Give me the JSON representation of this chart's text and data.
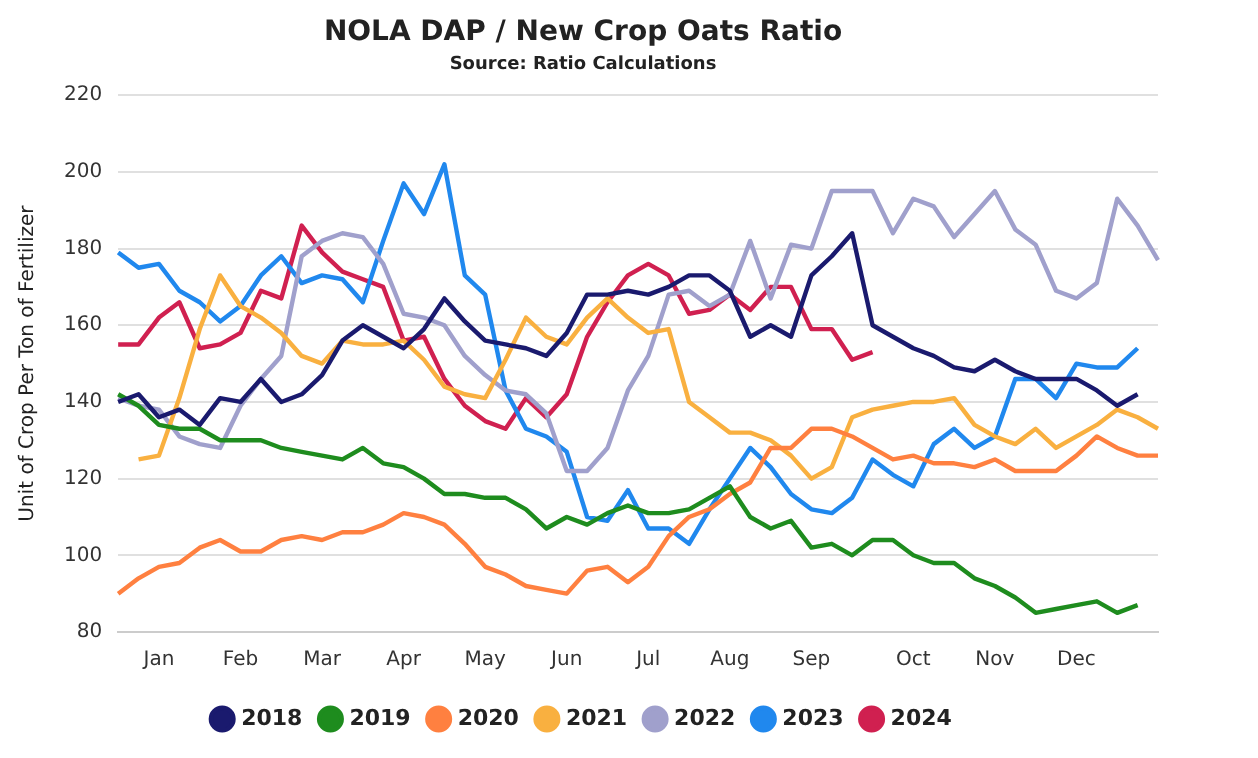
{
  "chart_data": {
    "type": "line",
    "title": "NOLA DAP / New Crop Oats Ratio",
    "subtitle": "Source: Ratio Calculations",
    "ylabel": "Unit of Crop Per Ton of Fertilizer",
    "categories": [
      null,
      null,
      "Jan",
      null,
      null,
      null,
      "Feb",
      null,
      null,
      null,
      "Mar",
      null,
      null,
      null,
      "Apr",
      null,
      null,
      null,
      "May",
      null,
      null,
      null,
      "Jun",
      null,
      null,
      null,
      "Jul",
      null,
      null,
      null,
      "Aug",
      null,
      null,
      null,
      "Sep",
      null,
      null,
      null,
      null,
      "Oct",
      null,
      null,
      null,
      "Nov",
      null,
      null,
      null,
      "Dec",
      null,
      null,
      null,
      null
    ],
    "series": [
      {
        "name": "2018",
        "color": "#1a1a6e",
        "values": [
          140,
          142,
          136,
          138,
          134,
          141,
          140,
          146,
          140,
          142,
          147,
          156,
          160,
          157,
          154,
          159,
          167,
          161,
          156,
          155,
          154,
          152,
          158,
          168,
          168,
          169,
          168,
          170,
          173,
          173,
          169,
          157,
          160,
          157,
          173,
          178,
          184,
          160,
          157,
          154,
          152,
          149,
          148,
          151,
          148,
          146,
          146,
          146,
          143,
          139,
          142,
          null
        ]
      },
      {
        "name": "2019",
        "color": "#1e8c1e",
        "values": [
          142,
          139,
          134,
          133,
          133,
          130,
          130,
          130,
          128,
          127,
          126,
          125,
          128,
          124,
          123,
          120,
          116,
          116,
          115,
          115,
          112,
          107,
          110,
          108,
          111,
          113,
          111,
          111,
          112,
          115,
          118,
          110,
          107,
          109,
          102,
          103,
          100,
          104,
          104,
          100,
          98,
          98,
          94,
          92,
          89,
          85,
          86,
          87,
          88,
          85,
          87,
          null
        ]
      },
      {
        "name": "2020",
        "color": "#ff8040",
        "values": [
          90,
          94,
          97,
          98,
          102,
          104,
          101,
          101,
          104,
          105,
          104,
          106,
          106,
          108,
          111,
          110,
          108,
          103,
          97,
          95,
          92,
          91,
          90,
          96,
          97,
          93,
          97,
          105,
          110,
          112,
          116,
          119,
          128,
          128,
          133,
          133,
          131,
          128,
          125,
          126,
          124,
          124,
          123,
          125,
          122,
          122,
          122,
          126,
          131,
          128,
          126,
          126
        ]
      },
      {
        "name": "2021",
        "color": "#f9b040",
        "values": [
          null,
          125,
          126,
          141,
          159,
          173,
          165,
          162,
          158,
          152,
          150,
          156,
          155,
          155,
          156,
          151,
          144,
          142,
          141,
          151,
          162,
          157,
          155,
          162,
          167,
          162,
          158,
          159,
          140,
          136,
          132,
          132,
          130,
          126,
          120,
          123,
          136,
          138,
          139,
          140,
          140,
          141,
          134,
          131,
          129,
          133,
          128,
          131,
          134,
          138,
          136,
          133
        ]
      },
      {
        "name": "2022",
        "color": "#a0a0cc",
        "values": [
          141,
          139,
          138,
          131,
          129,
          128,
          139,
          146,
          152,
          178,
          182,
          184,
          183,
          176,
          163,
          162,
          160,
          152,
          147,
          143,
          142,
          137,
          122,
          122,
          128,
          143,
          152,
          168,
          169,
          165,
          168,
          182,
          167,
          181,
          180,
          195,
          195,
          195,
          184,
          193,
          191,
          183,
          189,
          195,
          185,
          181,
          169,
          167,
          171,
          193,
          186,
          177
        ]
      },
      {
        "name": "2023",
        "color": "#2088ee",
        "values": [
          179,
          175,
          176,
          169,
          166,
          161,
          165,
          173,
          178,
          171,
          173,
          172,
          166,
          182,
          197,
          189,
          202,
          173,
          168,
          143,
          133,
          131,
          127,
          110,
          109,
          117,
          107,
          107,
          103,
          112,
          120,
          128,
          123,
          116,
          112,
          111,
          115,
          125,
          121,
          118,
          129,
          133,
          128,
          131,
          146,
          146,
          141,
          150,
          149,
          149,
          154,
          null
        ]
      },
      {
        "name": "2024",
        "color": "#d02050",
        "values": [
          155,
          155,
          162,
          166,
          154,
          155,
          158,
          169,
          167,
          186,
          179,
          174,
          172,
          170,
          156,
          157,
          146,
          139,
          135,
          133,
          141,
          136,
          142,
          157,
          166,
          173,
          176,
          173,
          163,
          164,
          168,
          164,
          170,
          170,
          159,
          159,
          151,
          153,
          null,
          null,
          null,
          null,
          null,
          null,
          null,
          null,
          null,
          null,
          null,
          null,
          null,
          null
        ]
      }
    ],
    "ylim": [
      80,
      220
    ],
    "yticks": [
      80,
      100,
      120,
      140,
      160,
      180,
      200,
      220
    ],
    "grid": "y",
    "legend": "bottom",
    "marker": "none",
    "line_style": "solid"
  }
}
